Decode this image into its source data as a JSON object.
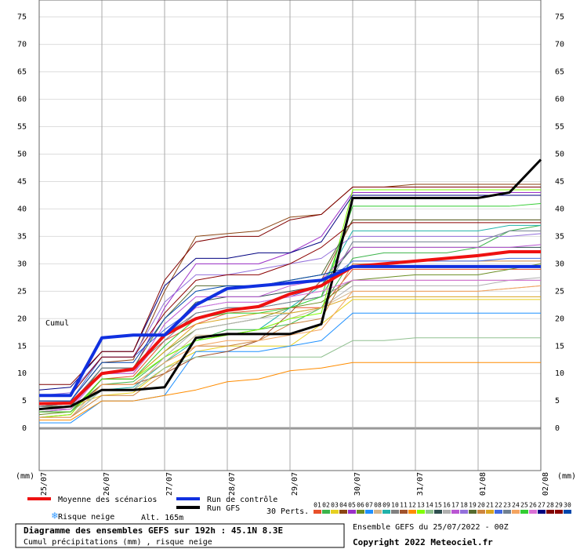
{
  "chart_data": {
    "type": "line",
    "title": "Diagramme des ensembles GEFS sur 192h : 45.1N 8.3E",
    "subtitle": "Cumul précipitations (mm) , risque neige",
    "y_label": "Cumul",
    "y_unit": "(mm)",
    "run_info": "Ensemble GEFS du 25/07/2022 - 00Z",
    "copyright": "Copyright 2022 Meteociel.fr",
    "snow_label": "Risque neige",
    "altitude": "Alt. 165m",
    "perts_label": "30 Perts.",
    "grid": true,
    "xlim": [
      0,
      8
    ],
    "ylim": [
      -7.7,
      78.1
    ],
    "xticks": [
      {
        "value": 0,
        "label": "25/07"
      },
      {
        "value": 1,
        "label": "26/07"
      },
      {
        "value": 2,
        "label": "27/07"
      },
      {
        "value": 3,
        "label": "28/07"
      },
      {
        "value": 4,
        "label": "29/07"
      },
      {
        "value": 5,
        "label": "30/07"
      },
      {
        "value": 6,
        "label": "31/07"
      },
      {
        "value": 7,
        "label": "01/08"
      },
      {
        "value": 8,
        "label": "02/08"
      }
    ],
    "yticks": [
      0,
      5,
      10,
      15,
      20,
      25,
      30,
      35,
      40,
      45,
      50,
      55,
      60,
      65,
      70,
      75
    ],
    "x": [
      0,
      0.5,
      1,
      1.5,
      2,
      2.5,
      3,
      3.5,
      4,
      4.5,
      5,
      5.5,
      6,
      6.5,
      7,
      7.5,
      8
    ],
    "series": [
      {
        "name": "Moyenne des scénarios",
        "color": "#ee1111",
        "line_width": 4,
        "values": [
          4.5,
          4.6,
          10,
          10.8,
          17,
          20,
          21.5,
          22.2,
          24.5,
          26,
          29.5,
          30,
          30.5,
          31,
          31.5,
          32.2,
          32.2
        ]
      },
      {
        "name": "Run de contrôle",
        "color": "#1030e0",
        "line_width": 4,
        "values": [
          6,
          6,
          16.5,
          17,
          17,
          22.5,
          25.5,
          26,
          26.5,
          27,
          29.5,
          29.5,
          29.5,
          29.5,
          29.5,
          29.5,
          29.5
        ]
      },
      {
        "name": "Run GFS",
        "color": "#000000",
        "line_width": 3,
        "values": [
          3.5,
          4,
          7,
          7,
          7.5,
          16.5,
          17.2,
          17.2,
          17.2,
          19,
          42,
          42,
          42,
          42,
          42,
          43,
          49
        ]
      },
      {
        "name": "01",
        "color": "#e8502a",
        "line_width": 1,
        "values": [
          2,
          2.5,
          9,
          9.5,
          16,
          19,
          21,
          21.5,
          22,
          22,
          29,
          29,
          29,
          29,
          29,
          29,
          29
        ]
      },
      {
        "name": "02",
        "color": "#3cb44b",
        "line_width": 1,
        "values": [
          3,
          3.5,
          8,
          8.5,
          13,
          16,
          18,
          18,
          19,
          22,
          31,
          32,
          32,
          32,
          33,
          36,
          37
        ]
      },
      {
        "name": "03",
        "color": "#e6d020",
        "line_width": 1,
        "values": [
          3.5,
          4,
          6,
          6.5,
          11,
          14,
          15,
          15,
          15,
          19,
          23.5,
          23.5,
          23.5,
          23.5,
          23.5,
          23.5,
          23.5
        ]
      },
      {
        "name": "04",
        "color": "#8b4513",
        "line_width": 1,
        "values": [
          5,
          5,
          12,
          12.5,
          25,
          35,
          35.5,
          36,
          38.5,
          39,
          44,
          44,
          44.5,
          44.5,
          44.5,
          44.5,
          44.5
        ]
      },
      {
        "name": "05",
        "color": "#9b30c8",
        "line_width": 1,
        "values": [
          4,
          4,
          10,
          10.5,
          22,
          30,
          30,
          30,
          32,
          35,
          43,
          43,
          43,
          43,
          43,
          43,
          43
        ]
      },
      {
        "name": "06",
        "color": "#6b8e23",
        "line_width": 1,
        "values": [
          2.5,
          3,
          9,
          9,
          14,
          18,
          19,
          20,
          22,
          23,
          27,
          27.5,
          28,
          28,
          28,
          29,
          30
        ]
      },
      {
        "name": "07",
        "color": "#1e90ff",
        "line_width": 1,
        "values": [
          1,
          1,
          5,
          5,
          6,
          14,
          14,
          14,
          15,
          16,
          21,
          21,
          21,
          21,
          21,
          21,
          21
        ]
      },
      {
        "name": "08",
        "color": "#d2b48c",
        "line_width": 1,
        "values": [
          3,
          3,
          8,
          8,
          12,
          17,
          17,
          18,
          20,
          22,
          25,
          25,
          25,
          25,
          25,
          25.5,
          26
        ]
      },
      {
        "name": "09",
        "color": "#20b2aa",
        "line_width": 1,
        "values": [
          2,
          2,
          7,
          7.5,
          12,
          16,
          17,
          18,
          22,
          26,
          36,
          36,
          36,
          36,
          36,
          37,
          37
        ]
      },
      {
        "name": "10",
        "color": "#808080",
        "line_width": 1,
        "values": [
          4,
          4,
          11,
          11,
          16,
          21,
          22,
          22,
          23,
          24,
          27,
          27,
          27,
          27,
          27,
          27,
          27
        ]
      },
      {
        "name": "11",
        "color": "#a0522d",
        "line_width": 1,
        "values": [
          3,
          3,
          8,
          8,
          10,
          13,
          14,
          16,
          21,
          27,
          38,
          38,
          38,
          38,
          38,
          38,
          38
        ]
      },
      {
        "name": "12",
        "color": "#ff8c00",
        "line_width": 1,
        "values": [
          1.5,
          1.5,
          5,
          5,
          6,
          7,
          8.5,
          9,
          10.5,
          11,
          12,
          12,
          12,
          12,
          12,
          12,
          12
        ]
      },
      {
        "name": "13",
        "color": "#7fff00",
        "line_width": 1,
        "values": [
          2,
          2.5,
          9,
          9,
          13,
          16,
          17,
          18,
          20,
          21,
          43.5,
          43.5,
          43.5,
          43.5,
          43.5,
          43.5,
          43.5
        ]
      },
      {
        "name": "14",
        "color": "#90c090",
        "line_width": 1,
        "values": [
          3,
          3,
          7,
          7,
          11,
          13,
          13,
          13,
          13,
          13,
          16,
          16,
          16.5,
          16.5,
          16.5,
          16.5,
          16.5
        ]
      },
      {
        "name": "15",
        "color": "#2f4f4f",
        "line_width": 1,
        "values": [
          4,
          4.5,
          10,
          10,
          17,
          23,
          24,
          24,
          25,
          26,
          33,
          33,
          33,
          33,
          33,
          33,
          33
        ]
      },
      {
        "name": "16",
        "color": "#b0b0b0",
        "line_width": 1,
        "values": [
          2,
          2,
          7,
          7,
          13,
          18,
          19,
          20,
          21,
          22,
          26,
          26,
          26,
          26,
          26,
          27,
          27.5
        ]
      },
      {
        "name": "17",
        "color": "#ba55d3",
        "line_width": 1,
        "values": [
          3,
          3.5,
          10,
          10,
          19,
          24,
          24,
          24,
          26,
          27,
          33,
          33,
          33,
          33,
          33,
          33,
          33.5
        ]
      },
      {
        "name": "18",
        "color": "#9370db",
        "line_width": 1,
        "values": [
          6,
          6.5,
          13,
          13,
          23,
          28,
          28,
          29,
          30,
          31,
          35,
          35,
          35,
          35,
          35,
          35,
          35.5
        ]
      },
      {
        "name": "19",
        "color": "#556b2f",
        "line_width": 1,
        "values": [
          4,
          4,
          11,
          11,
          20,
          26,
          26,
          26,
          27,
          28,
          38,
          38,
          38,
          38,
          38,
          38,
          38
        ]
      },
      {
        "name": "20",
        "color": "#cd853f",
        "line_width": 1,
        "values": [
          2,
          2,
          6,
          6,
          10,
          15,
          15,
          16,
          19,
          20,
          30,
          30,
          30.5,
          30.5,
          30.5,
          30.5,
          30.5
        ]
      },
      {
        "name": "21",
        "color": "#daa520",
        "line_width": 1,
        "values": [
          3,
          3,
          9,
          9,
          14,
          19,
          20,
          21,
          21,
          22,
          24,
          24,
          24,
          24,
          24,
          24,
          24
        ]
      },
      {
        "name": "22",
        "color": "#4169e1",
        "line_width": 1,
        "values": [
          5,
          5,
          13,
          13,
          18,
          22,
          23,
          23,
          24,
          26,
          30.5,
          30.5,
          30.5,
          30.5,
          30.5,
          31,
          31
        ]
      },
      {
        "name": "23",
        "color": "#708090",
        "line_width": 1,
        "values": [
          4,
          4.5,
          11,
          11,
          17,
          21,
          22,
          22,
          23,
          24,
          34,
          34,
          34,
          34,
          34,
          36,
          36
        ]
      },
      {
        "name": "24",
        "color": "#f4a460",
        "line_width": 1,
        "values": [
          2,
          2,
          8,
          8,
          12,
          15,
          16,
          16,
          17,
          18,
          25,
          25,
          25,
          25,
          25,
          25.5,
          26
        ]
      },
      {
        "name": "25",
        "color": "#32cd32",
        "line_width": 1,
        "values": [
          3,
          3,
          9,
          9,
          15,
          20,
          21,
          21,
          22,
          24,
          40.5,
          40.5,
          40.5,
          40.5,
          40.5,
          40.5,
          41
        ]
      },
      {
        "name": "26",
        "color": "#da70d6",
        "line_width": 1,
        "values": [
          3.5,
          3.5,
          10,
          10,
          17,
          22,
          23,
          23,
          24,
          25,
          27,
          27,
          27,
          27,
          27,
          27,
          27
        ]
      },
      {
        "name": "27",
        "color": "#000080",
        "line_width": 1,
        "values": [
          7,
          7.5,
          14,
          14,
          26,
          31,
          31,
          32,
          32,
          34,
          42.5,
          42.5,
          42.5,
          42.5,
          42.5,
          42.5,
          42.5
        ]
      },
      {
        "name": "28",
        "color": "#800000",
        "line_width": 1,
        "values": [
          8,
          8,
          14,
          14,
          27,
          34,
          35,
          35,
          38,
          39,
          44,
          44,
          44,
          44,
          44,
          44,
          44
        ]
      },
      {
        "name": "29",
        "color": "#8b0000",
        "line_width": 1,
        "values": [
          6,
          6,
          13,
          13,
          21,
          27,
          28,
          28,
          30,
          33,
          37.5,
          37.5,
          37.5,
          37.5,
          37.5,
          37.5,
          37.5
        ]
      },
      {
        "name": "30",
        "color": "#0047ab",
        "line_width": 1,
        "values": [
          5,
          5,
          12,
          12,
          20,
          25,
          26,
          26,
          27,
          28,
          29.5,
          29.5,
          29.5,
          29.5,
          29.5,
          29.5,
          29.5
        ]
      }
    ]
  }
}
